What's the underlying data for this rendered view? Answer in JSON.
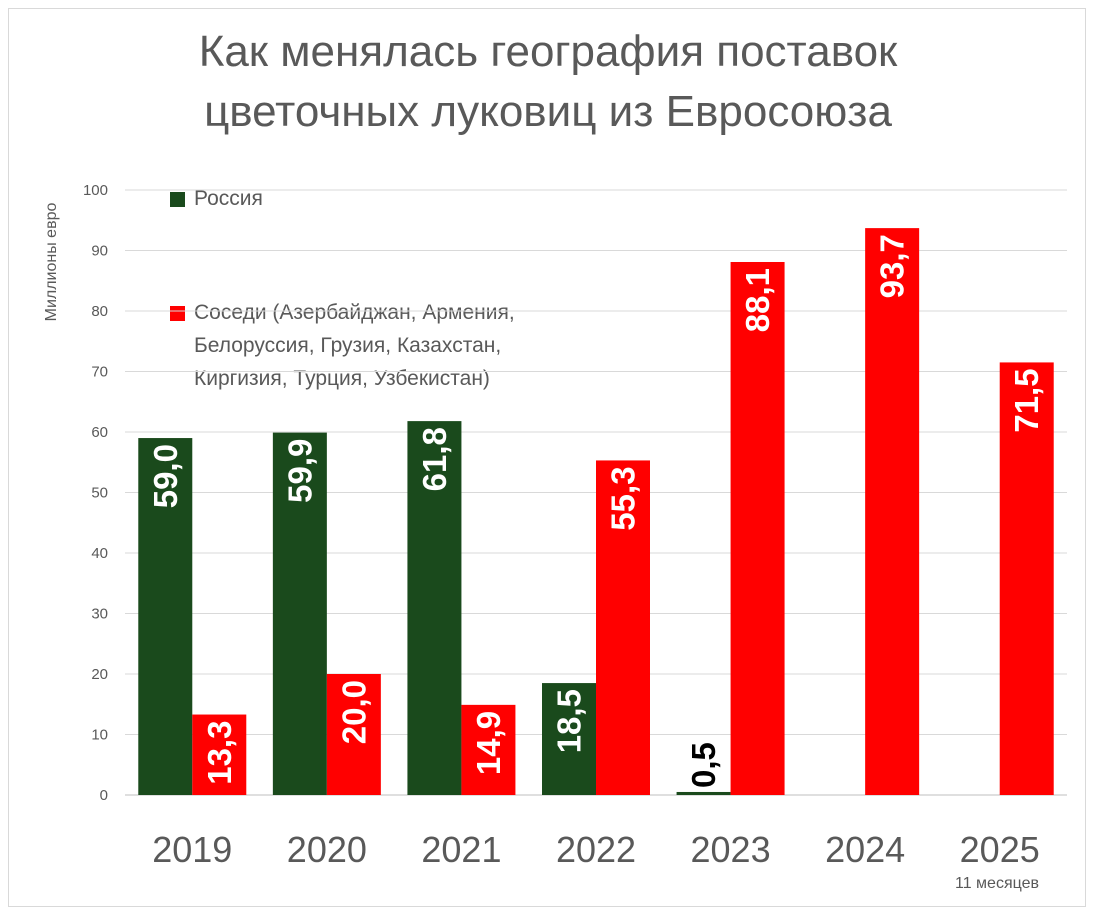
{
  "chart_data": {
    "type": "bar",
    "title": [
      "Как менялась география поставок",
      "цветочных луковиц  из Евросоюза"
    ],
    "ylabel": "Миллионы евро",
    "xlabel": "",
    "ylim": [
      0,
      100
    ],
    "yticks": [
      0,
      10,
      20,
      30,
      40,
      50,
      60,
      70,
      80,
      90,
      100
    ],
    "categories": [
      "2019",
      "2020",
      "2021",
      "2022",
      "2023",
      "2024",
      "2025"
    ],
    "category_note": "11 месяцев",
    "grid": true,
    "legend_position": "top-left",
    "series": [
      {
        "name": "Россия",
        "color": "#1a4a1c",
        "values": [
          59.0,
          59.9,
          61.8,
          18.5,
          0.5,
          null,
          null
        ],
        "labels": [
          "59,0",
          "59,9",
          "61,8",
          "18,5",
          "0,5",
          "",
          ""
        ]
      },
      {
        "name": "Соседи (Азербайджан, Армения,",
        "name_lines": [
          "Соседи (Азербайджан, Армения,",
          "Белоруссия, Грузия, Казахстан,",
          "Киргизия, Турция, Узбекистан)"
        ],
        "color": "#ff0000",
        "values": [
          13.3,
          20.0,
          14.9,
          55.3,
          88.1,
          93.7,
          71.5
        ],
        "labels": [
          "13,3",
          "20,0",
          "14,9",
          "55,3",
          "88,1",
          "93,7",
          "71,5"
        ]
      }
    ]
  }
}
